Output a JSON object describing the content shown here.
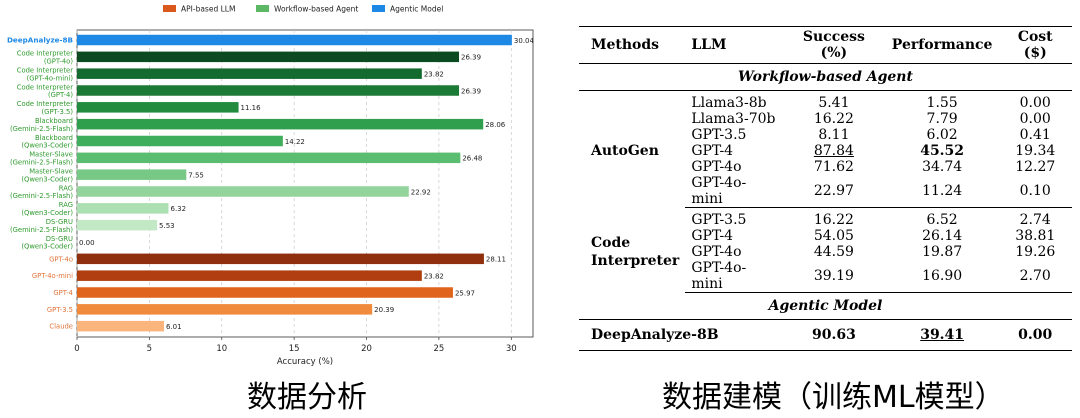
{
  "chart_data": {
    "type": "bar",
    "orientation": "horizontal",
    "xlabel": "Accuracy (%)",
    "xlim": [
      0,
      31.5
    ],
    "xticks": [
      0,
      5,
      10,
      15,
      20,
      25,
      30
    ],
    "grid": "vertical dashed",
    "legend_position": "top",
    "legend": [
      {
        "label": "API-based LLM",
        "color": "#d9581b"
      },
      {
        "label": "Workflow-based Agent",
        "color": "#5cb865"
      },
      {
        "label": "Agentic Model",
        "color": "#1e88e5"
      }
    ],
    "categories": [
      {
        "label": [
          "DeepAnalyze-8B"
        ],
        "value": 30.04,
        "value_label": "30.04",
        "color": "#1e88e5",
        "label_color": "#1e88e5",
        "label_bold": true
      },
      {
        "label": [
          "Code Interpreter",
          "(GPT-4o)"
        ],
        "value": 26.39,
        "value_label": "26.39",
        "color": "#0c4a22",
        "label_color": "#2e9a2e"
      },
      {
        "label": [
          "Code Interpreter",
          "(GPT-4o-mini)"
        ],
        "value": 23.82,
        "value_label": "23.82",
        "color": "#146b2f",
        "label_color": "#2e9a2e"
      },
      {
        "label": [
          "Code Interpreter",
          "(GPT-4)"
        ],
        "value": 26.39,
        "value_label": "26.39",
        "color": "#1b7a36",
        "label_color": "#2e9a2e"
      },
      {
        "label": [
          "Code Interpreter",
          "(GPT-3.5)"
        ],
        "value": 11.16,
        "value_label": "11.16",
        "color": "#228b3e",
        "label_color": "#2e9a2e"
      },
      {
        "label": [
          "Blackboard",
          "(Gemini-2.5-Flash)"
        ],
        "value": 28.06,
        "value_label": "28.06",
        "color": "#2f9e4d",
        "label_color": "#2e9a2e"
      },
      {
        "label": [
          "Blackboard",
          "(Qwen3-Coder)"
        ],
        "value": 14.22,
        "value_label": "14.22",
        "color": "#3fae5c",
        "label_color": "#2e9a2e"
      },
      {
        "label": [
          "Master-Slave",
          "(Gemini-2.5-Flash)"
        ],
        "value": 26.48,
        "value_label": "26.48",
        "color": "#5bbd6f",
        "label_color": "#2e9a2e"
      },
      {
        "label": [
          "Master-Slave",
          "(Qwen3-Coder)"
        ],
        "value": 7.55,
        "value_label": "7.55",
        "color": "#76c884",
        "label_color": "#2e9a2e"
      },
      {
        "label": [
          "RAG",
          "(Gemini-2.5-Flash)"
        ],
        "value": 22.92,
        "value_label": "22.92",
        "color": "#93d49c",
        "label_color": "#2e9a2e"
      },
      {
        "label": [
          "RAG",
          "(Qwen3-Coder)"
        ],
        "value": 6.32,
        "value_label": "6.32",
        "color": "#acdfb2",
        "label_color": "#2e9a2e"
      },
      {
        "label": [
          "DS-GRU",
          "(Gemini-2.5-Flash)"
        ],
        "value": 5.53,
        "value_label": "5.53",
        "color": "#c3e8c6",
        "label_color": "#2e9a2e"
      },
      {
        "label": [
          "DS-GRU",
          "(Qwen3-Coder)"
        ],
        "value": 0.0,
        "value_label": "0.00",
        "color": "#d6efd8",
        "label_color": "#2e9a2e"
      },
      {
        "label": [
          "GPT-4o"
        ],
        "value": 28.11,
        "value_label": "28.11",
        "color": "#8f2f0d",
        "label_color": "#e2743a"
      },
      {
        "label": [
          "GPT-4o-mini"
        ],
        "value": 23.82,
        "value_label": "23.82",
        "color": "#b03e10",
        "label_color": "#e2743a"
      },
      {
        "label": [
          "GPT-4"
        ],
        "value": 25.97,
        "value_label": "25.97",
        "color": "#e0641c",
        "label_color": "#e2743a"
      },
      {
        "label": [
          "GPT-3.5"
        ],
        "value": 20.39,
        "value_label": "20.39",
        "color": "#f08a3c",
        "label_color": "#e2743a"
      },
      {
        "label": [
          "Claude"
        ],
        "value": 6.01,
        "value_label": "6.01",
        "color": "#fbb47c",
        "label_color": "#e2743a"
      }
    ]
  },
  "captions": {
    "left": "数据分析",
    "right": "数据建模（训练ML模型）"
  },
  "table": {
    "headers": {
      "methods": "Methods",
      "llm": "LLM",
      "success": "Success (%)",
      "performance": "Performance",
      "cost": "Cost ($)"
    },
    "sections": {
      "workflow": "Workflow-based Agent",
      "agentic": "Agentic Model"
    },
    "autogen": {
      "method": "AutoGen",
      "rows": [
        {
          "llm": "Llama3-8b",
          "success": "5.41",
          "performance": "1.55",
          "cost": "0.00"
        },
        {
          "llm": "Llama3-70b",
          "success": "16.22",
          "performance": "7.79",
          "cost": "0.00"
        },
        {
          "llm": "GPT-3.5",
          "success": "8.11",
          "performance": "6.02",
          "cost": "0.41"
        },
        {
          "llm": "GPT-4",
          "success": "87.84",
          "performance": "45.52",
          "cost": "19.34"
        },
        {
          "llm": "GPT-4o",
          "success": "71.62",
          "performance": "34.74",
          "cost": "12.27"
        },
        {
          "llm": "GPT-4o-mini",
          "success": "22.97",
          "performance": "11.24",
          "cost": "0.10"
        }
      ]
    },
    "code_interpreter": {
      "method_line1": "Code",
      "method_line2": "Interpreter",
      "rows": [
        {
          "llm": "GPT-3.5",
          "success": "16.22",
          "performance": "6.52",
          "cost": "2.74"
        },
        {
          "llm": "GPT-4",
          "success": "54.05",
          "performance": "26.14",
          "cost": "38.81"
        },
        {
          "llm": "GPT-4o",
          "success": "44.59",
          "performance": "19.87",
          "cost": "19.26"
        },
        {
          "llm": "GPT-4o-mini",
          "success": "39.19",
          "performance": "16.90",
          "cost": "2.70"
        }
      ]
    },
    "final": {
      "method": "DeepAnalyze-8B",
      "success": "90.63",
      "performance": "39.41",
      "cost": "0.00"
    }
  }
}
